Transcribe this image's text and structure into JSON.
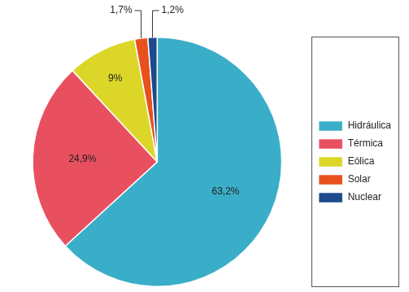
{
  "chart_data": {
    "type": "pie",
    "categories": [
      "Hidráulica",
      "Térmica",
      "Eólica",
      "Solar",
      "Nuclear"
    ],
    "values": [
      63.2,
      24.9,
      9,
      1.7,
      1.2
    ],
    "value_labels": [
      "63,2%",
      "24,9%",
      "9%",
      "1,7%",
      "1,2%"
    ],
    "colors": [
      "#3aaec8",
      "#e8505f",
      "#dcd628",
      "#e8501e",
      "#1e4a8c"
    ],
    "legend": "right",
    "data_labels": true
  }
}
